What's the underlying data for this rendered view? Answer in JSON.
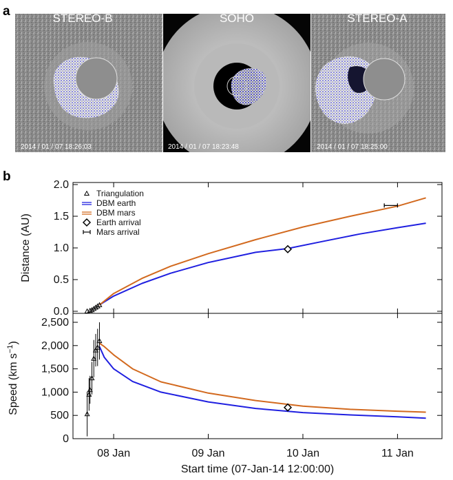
{
  "panel_a": {
    "letter": "a",
    "images": [
      {
        "title": "STEREO-B",
        "timestamp": "2014 / 01 / 07 18:26:03"
      },
      {
        "title": "SOHO",
        "timestamp": "2014 / 01 / 07 18:23:48"
      },
      {
        "title": "STEREO-A",
        "timestamp": "2014 / 01 / 07 18:25:00"
      }
    ]
  },
  "panel_b": {
    "letter": "b"
  },
  "colors": {
    "earth": "#1f1fe0",
    "mars": "#d2691e",
    "marker": "#000000"
  },
  "chart_data": [
    {
      "type": "line",
      "ylabel": "Distance (AU)",
      "ylim": [
        0,
        2.0
      ],
      "yticks": [
        "0.0",
        "0.5",
        "1.0",
        "1.5",
        "2.0"
      ],
      "xlim_days": [
        7.57,
        11.47
      ],
      "legend_placement": "top-left",
      "legend": [
        "Triangulation",
        "DBM earth",
        "DBM mars",
        "Earth arrival",
        "Mars arrival"
      ],
      "series": [
        {
          "name": "Triangulation",
          "style": "triangle-markers",
          "points": [
            [
              7.72,
              0.0
            ],
            [
              7.75,
              0.01
            ],
            [
              7.77,
              0.02
            ],
            [
              7.79,
              0.04
            ],
            [
              7.81,
              0.06
            ],
            [
              7.83,
              0.08
            ],
            [
              7.85,
              0.1
            ]
          ]
        },
        {
          "name": "DBM earth",
          "color_key": "earth",
          "points": [
            [
              7.85,
              0.1
            ],
            [
              8.0,
              0.24
            ],
            [
              8.3,
              0.44
            ],
            [
              8.6,
              0.6
            ],
            [
              9.0,
              0.77
            ],
            [
              9.5,
              0.93
            ],
            [
              9.84,
              0.99
            ],
            [
              10.2,
              1.1
            ],
            [
              10.6,
              1.22
            ],
            [
              11.0,
              1.32
            ],
            [
              11.3,
              1.39
            ]
          ]
        },
        {
          "name": "DBM mars",
          "color_key": "mars",
          "points": [
            [
              7.85,
              0.1
            ],
            [
              8.0,
              0.28
            ],
            [
              8.3,
              0.52
            ],
            [
              8.6,
              0.71
            ],
            [
              9.0,
              0.91
            ],
            [
              9.5,
              1.13
            ],
            [
              10.0,
              1.33
            ],
            [
              10.5,
              1.5
            ],
            [
              11.0,
              1.66
            ],
            [
              11.3,
              1.79
            ]
          ]
        }
      ],
      "earth_arrival": {
        "x": 9.84,
        "y": 0.98
      },
      "mars_arrival": {
        "x": 10.93,
        "y": 1.67,
        "xerr": 0.07
      }
    },
    {
      "type": "line",
      "ylabel_main": "Speed (km s",
      "ylabel_sup": "−1",
      "ylabel_close": ")",
      "ylim": [
        0,
        2500
      ],
      "yticks": [
        "0",
        "500",
        "1,000",
        "1,500",
        "2,000",
        "2,500"
      ],
      "xlabel": "Start time (07-Jan-14 12:00:00)",
      "xticks": [
        {
          "label": "08 Jan",
          "x": 8.0
        },
        {
          "label": "09 Jan",
          "x": 9.0
        },
        {
          "label": "10 Jan",
          "x": 10.0
        },
        {
          "label": "11 Jan",
          "x": 11.0
        }
      ],
      "xlim_days": [
        7.57,
        11.47
      ],
      "series": [
        {
          "name": "Triangulation",
          "style": "triangle-markers-errorbars",
          "points": [
            [
              7.72,
              530,
              480
            ],
            [
              7.74,
              950,
              350
            ],
            [
              7.75,
              1050,
              300
            ],
            [
              7.77,
              1300,
              350
            ],
            [
              7.79,
              1720,
              400
            ],
            [
              7.81,
              1900,
              350
            ],
            [
              7.83,
              1960,
              400
            ],
            [
              7.85,
              2100,
              400
            ]
          ]
        },
        {
          "name": "DBM earth",
          "color_key": "earth",
          "points": [
            [
              7.85,
              1980
            ],
            [
              7.9,
              1750
            ],
            [
              8.0,
              1500
            ],
            [
              8.2,
              1230
            ],
            [
              8.5,
              1000
            ],
            [
              9.0,
              790
            ],
            [
              9.5,
              650
            ],
            [
              10.0,
              560
            ],
            [
              10.5,
              510
            ],
            [
              11.0,
              470
            ],
            [
              11.3,
              440
            ]
          ]
        },
        {
          "name": "DBM mars",
          "color_key": "mars",
          "points": [
            [
              7.85,
              2050
            ],
            [
              7.9,
              1980
            ],
            [
              8.0,
              1800
            ],
            [
              8.2,
              1500
            ],
            [
              8.5,
              1220
            ],
            [
              9.0,
              980
            ],
            [
              9.5,
              820
            ],
            [
              10.0,
              700
            ],
            [
              10.5,
              630
            ],
            [
              11.0,
              590
            ],
            [
              11.3,
              570
            ]
          ]
        }
      ],
      "earth_arrival": {
        "x": 9.84,
        "y": 670
      }
    }
  ]
}
